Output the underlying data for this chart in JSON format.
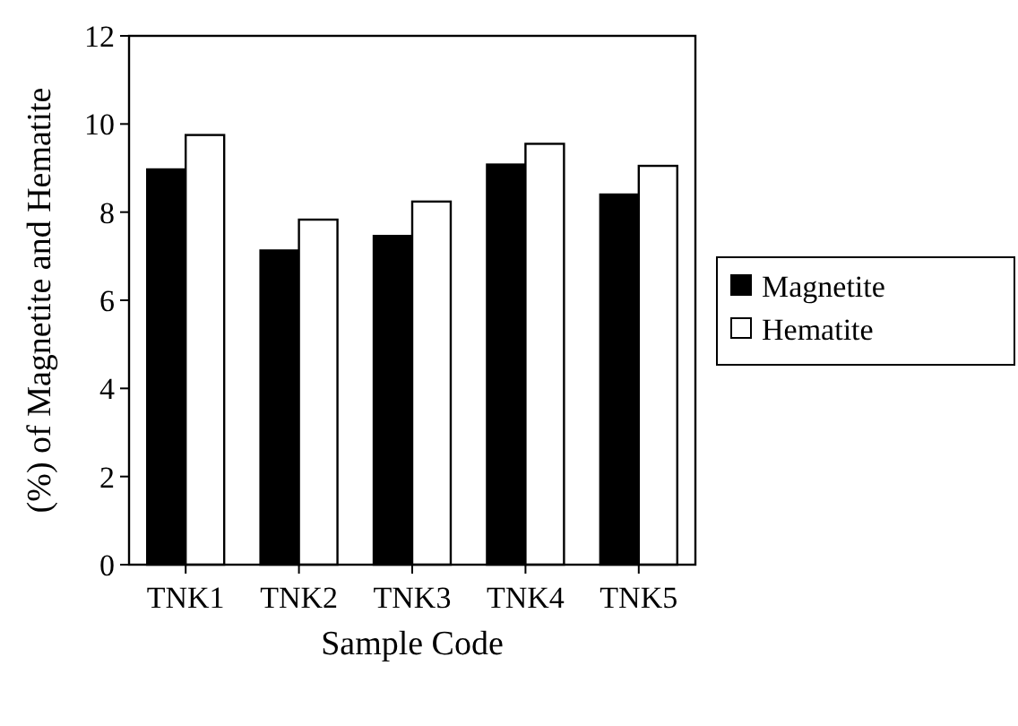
{
  "chart_data": {
    "type": "bar",
    "xlabel": "Sample Code",
    "ylabel": "(%) of Magnetite and Hematite",
    "categories": [
      "TNK1",
      "TNK2",
      "TNK3",
      "TNK4",
      "TNK5"
    ],
    "series": [
      {
        "name": "Magnetite",
        "color": "#000000",
        "values": [
          8.97,
          7.13,
          7.46,
          9.08,
          8.4
        ]
      },
      {
        "name": "Hematite",
        "color": "#ffffff",
        "values": [
          9.75,
          7.83,
          8.24,
          9.55,
          9.05
        ]
      }
    ],
    "ylim": [
      0,
      12
    ],
    "yticks": [
      0,
      2,
      4,
      6,
      8,
      10,
      12
    ],
    "grid": false,
    "legend": "right"
  }
}
